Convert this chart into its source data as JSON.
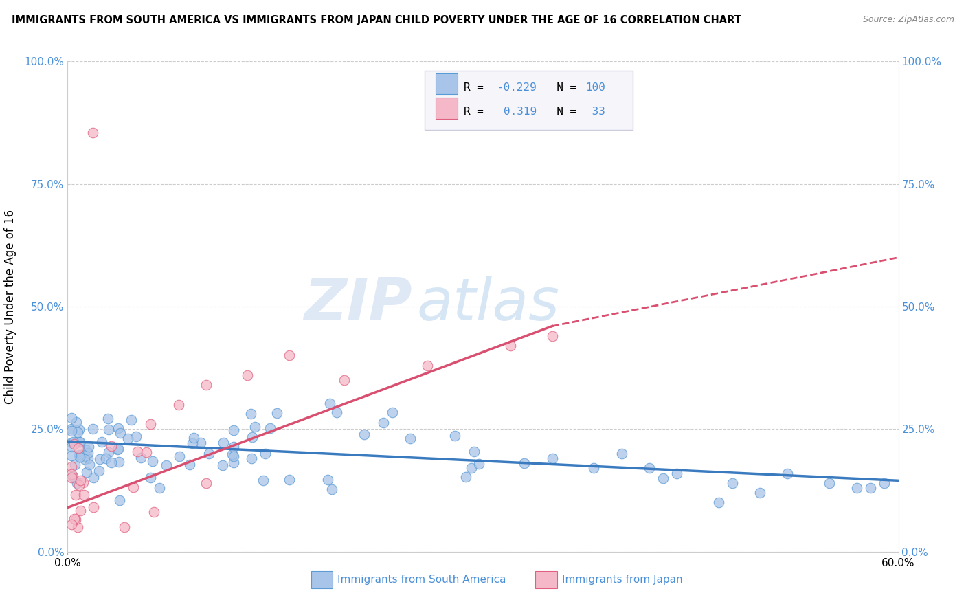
{
  "title": "IMMIGRANTS FROM SOUTH AMERICA VS IMMIGRANTS FROM JAPAN CHILD POVERTY UNDER THE AGE OF 16 CORRELATION CHART",
  "source": "Source: ZipAtlas.com",
  "ylabel": "Child Poverty Under the Age of 16",
  "ytick_vals": [
    0.0,
    0.25,
    0.5,
    0.75,
    1.0
  ],
  "ytick_labels": [
    "0.0%",
    "25.0%",
    "50.0%",
    "75.0%",
    "100.0%"
  ],
  "xmin": 0.0,
  "xmax": 0.6,
  "ymin": 0.0,
  "ymax": 1.0,
  "color_south_america_fill": "#a8c4e8",
  "color_south_america_edge": "#5b9bd5",
  "color_japan_fill": "#f4b8c8",
  "color_japan_edge": "#e06080",
  "color_trend_south": "#3a7abf",
  "color_trend_japan": "#d94f70",
  "watermark_color": "#d0dff0",
  "R_south": -0.229,
  "N_south": 100,
  "R_japan": 0.319,
  "N_japan": 33,
  "trend_south_x0": 0.0,
  "trend_south_y0": 0.225,
  "trend_south_x1": 0.6,
  "trend_south_y1": 0.145,
  "trend_japan_x0": 0.0,
  "trend_japan_y0": 0.09,
  "trend_japan_solid_x1": 0.35,
  "trend_japan_solid_y1": 0.46,
  "trend_japan_dash_x1": 0.6,
  "trend_japan_dash_y1": 0.6,
  "legend_entry1_r": "R = ",
  "legend_entry1_rv": "-0.229",
  "legend_entry1_n": "N = ",
  "legend_entry1_nv": "100",
  "legend_entry2_r": "R =  ",
  "legend_entry2_rv": "0.319",
  "legend_entry2_n": "N =  ",
  "legend_entry2_nv": "33",
  "legend_box_color": "#f5f5fa",
  "legend_box_edge": "#ccccdd",
  "bottom_legend_south": "Immigrants from South America",
  "bottom_legend_japan": "Immigrants from Japan",
  "tick_color": "#4a90d9",
  "background": "#ffffff"
}
